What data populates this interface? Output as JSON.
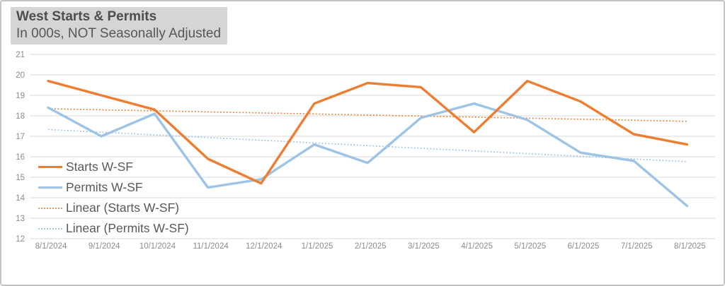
{
  "header": {
    "title": "West Starts & Permits",
    "subtitle": "In 000s, NOT Seasonally Adjusted",
    "highlight_color": "#d5d5d5"
  },
  "chart_data": {
    "type": "line",
    "categories": [
      "8/1/2024",
      "9/1/2024",
      "10/1/2024",
      "11/1/2024",
      "12/1/2024",
      "1/1/2025",
      "2/1/2025",
      "3/1/2025",
      "4/1/2025",
      "5/1/2025",
      "6/1/2025",
      "7/1/2025",
      "8/1/2025"
    ],
    "series": [
      {
        "name": "Starts W-SF",
        "values": [
          19.7,
          19.0,
          18.3,
          15.9,
          14.7,
          18.6,
          19.6,
          19.4,
          17.2,
          19.7,
          18.7,
          17.1,
          16.6
        ],
        "color": "#ED7D31",
        "style": "solid"
      },
      {
        "name": "Permits W-SF",
        "values": [
          18.4,
          17.0,
          18.1,
          14.5,
          14.9,
          16.6,
          15.7,
          17.9,
          18.6,
          17.8,
          16.2,
          15.8,
          13.6
        ],
        "color": "#9DC3E6",
        "style": "solid"
      },
      {
        "name": "Linear (Starts W-SF)",
        "trend_of": 0,
        "color": "#ED7D31",
        "style": "dotted"
      },
      {
        "name": "Linear (Permits W-SF)",
        "trend_of": 1,
        "color": "#9DC3E6",
        "style": "dotted"
      }
    ],
    "ylim": [
      12,
      21
    ],
    "ytick_step": 1,
    "yticks": [
      "12",
      "13",
      "14",
      "15",
      "16",
      "17",
      "18",
      "19",
      "20",
      "21"
    ],
    "grid": true,
    "gridline_color": "#d9d9d9",
    "axis_label_color": "#8c8c8c",
    "legend_position": "left-middle",
    "title": "West Starts & Permits",
    "subtitle": "In 000s, NOT Seasonally Adjusted",
    "xlabel": "",
    "ylabel": ""
  }
}
